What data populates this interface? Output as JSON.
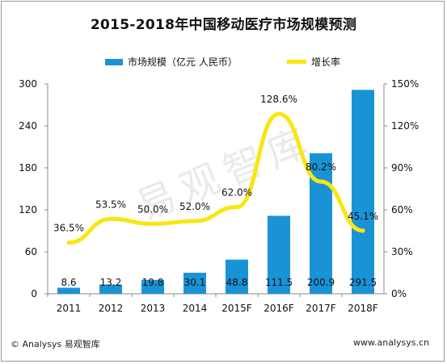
{
  "title": "2015-2018年中国移动医疗市场规模预测",
  "legend": {
    "bar_label": "市场规模（亿元 人民币）",
    "line_label": "增长率"
  },
  "watermark": "易观智库",
  "footer": {
    "left": "© Analysys 易观智库",
    "right": "www.analysys.cn"
  },
  "colors": {
    "bar": "#1a93d6",
    "line": "#f8e611",
    "axis": "#888888",
    "text": "#111111"
  },
  "chart_data": {
    "type": "bar",
    "categories": [
      "2011",
      "2012",
      "2013",
      "2014",
      "2015F",
      "2016F",
      "2017F",
      "2018F"
    ],
    "series": [
      {
        "name": "市场规模（亿元 人民币）",
        "type": "bar",
        "axis": "left",
        "values": [
          8.6,
          13.2,
          19.8,
          30.1,
          48.8,
          111.5,
          200.9,
          291.5
        ],
        "labels": [
          "8.6",
          "13.2",
          "19.8",
          "30.1",
          "48.8",
          "111.5",
          "200.9",
          "291.5"
        ]
      },
      {
        "name": "增长率",
        "type": "line",
        "axis": "right",
        "values": [
          36.5,
          53.5,
          50.0,
          52.0,
          62.0,
          128.6,
          80.2,
          45.1
        ],
        "labels": [
          "36.5%",
          "53.5%",
          "50.0%",
          "52.0%",
          "62.0%",
          "128.6%",
          "80.2%",
          "45.1%"
        ]
      }
    ],
    "y_left": {
      "min": 0,
      "max": 300,
      "ticks": [
        "0",
        "60",
        "120",
        "180",
        "240",
        "300"
      ]
    },
    "y_right": {
      "min": 0,
      "max": 150,
      "ticks": [
        "0%",
        "30%",
        "60%",
        "90%",
        "120%",
        "150%"
      ]
    },
    "grid": false,
    "legend_position": "top"
  }
}
